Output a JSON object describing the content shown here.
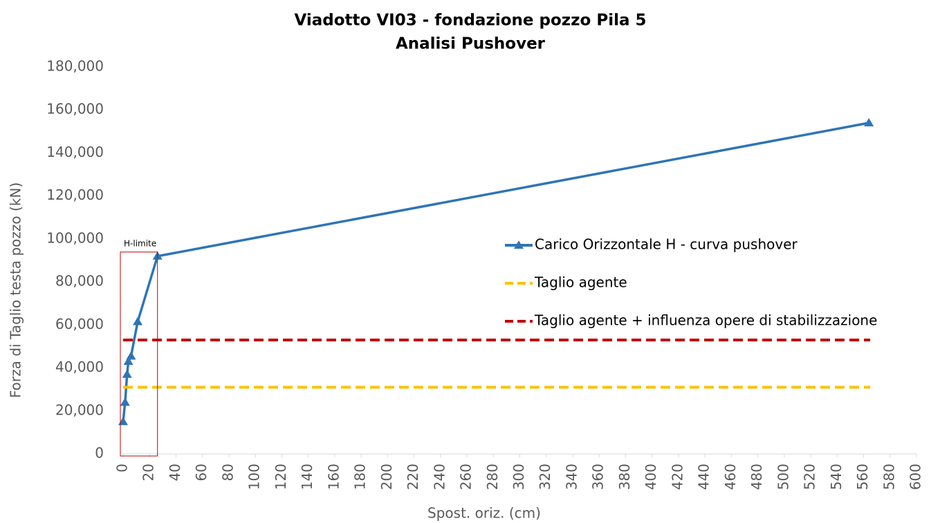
{
  "chart_data": {
    "type": "line",
    "title": "Viadotto VI03 - fondazione pozzo Pila 5",
    "subtitle": "Analisi Pushover",
    "x_label": "Spost. oriz. (cm)",
    "y_label": "Forza di Taglio testa pozzo (kN)",
    "annotation": "H-limite",
    "xlim": [
      0,
      600
    ],
    "xticks": [
      0,
      20,
      40,
      60,
      80,
      100,
      120,
      140,
      160,
      180,
      200,
      220,
      240,
      260,
      280,
      300,
      320,
      340,
      360,
      380,
      400,
      420,
      440,
      460,
      480,
      500,
      520,
      540,
      560,
      580,
      600
    ],
    "ylim": [
      0,
      180000
    ],
    "yticks": [
      0,
      {
        "value": 20000,
        "label": "20,000"
      },
      {
        "value": 40000,
        "label": "40,000"
      },
      {
        "value": 60000,
        "label": "60,000"
      },
      {
        "value": 80000,
        "label": "80,000"
      },
      {
        "value": 100000,
        "label": "100,000"
      },
      {
        "value": 120000,
        "label": "120,000"
      },
      {
        "value": 140000,
        "label": "140,000"
      },
      {
        "value": 160000,
        "label": "160,000"
      },
      {
        "value": 180000,
        "label": "180,000"
      }
    ],
    "grid": false,
    "legend": "right",
    "series": [
      {
        "name": "Carico Orizzontale H - curva pushover",
        "color": "#2e75b6",
        "dash": false,
        "marker": "triangle",
        "x": [
          0,
          1.5,
          3,
          4,
          6,
          11,
          26,
          564
        ],
        "values": [
          15000,
          24000,
          37000,
          43000,
          45500,
          61500,
          92000,
          154000
        ]
      },
      {
        "name": "Taglio agente",
        "color": "#ffc000",
        "dash": true,
        "marker": "none",
        "x": [
          0,
          565
        ],
        "values": [
          31000,
          31000
        ]
      },
      {
        "name": "Taglio agente + influenza opere di stabilizzazione",
        "color": "#c00000",
        "dash": true,
        "marker": "none",
        "x": [
          0,
          565
        ],
        "values": [
          53000,
          53000
        ]
      }
    ]
  }
}
